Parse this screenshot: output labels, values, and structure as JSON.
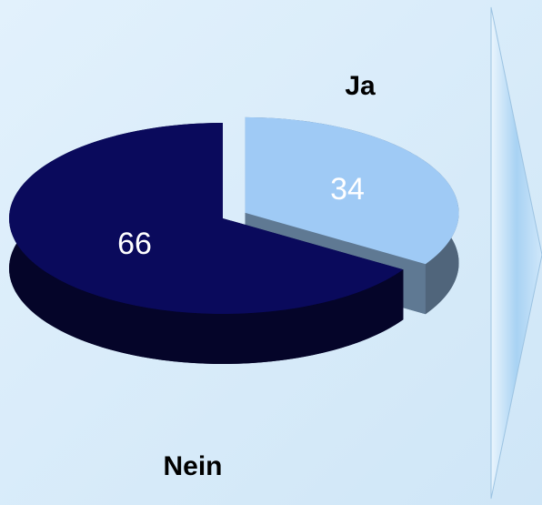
{
  "chart_data": {
    "type": "pie",
    "categories": [
      "Ja",
      "Nein"
    ],
    "values": [
      34,
      66
    ],
    "colors": [
      "#9fcaf5",
      "#0a0a5c"
    ]
  }
}
